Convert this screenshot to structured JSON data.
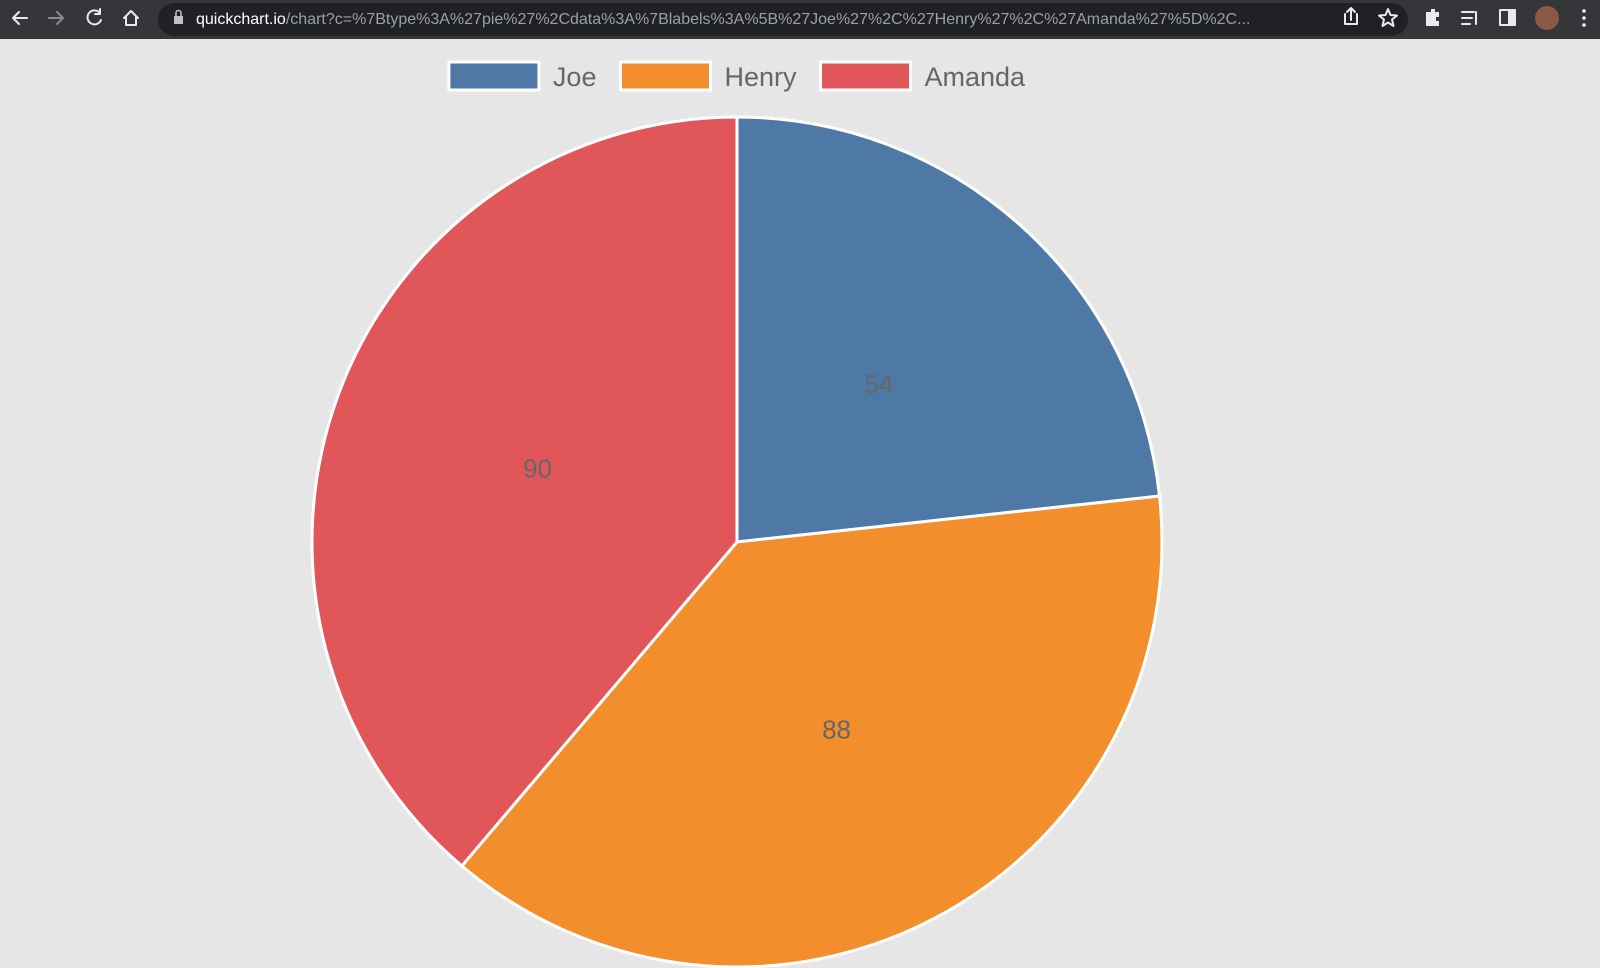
{
  "browser": {
    "url_host": "quickchart.io",
    "url_path": "/chart?c=%7Btype%3A%27pie%27%2Cdata%3A%7Blabels%3A%5B%27Joe%27%2C%27Henry%27%2C%27Amanda%27%5D%2C..."
  },
  "chart_data": {
    "type": "pie",
    "categories": [
      "Joe",
      "Henry",
      "Amanda"
    ],
    "values": [
      54,
      88,
      90
    ],
    "colors": [
      "#4e79a7",
      "#f28e2b",
      "#e15759"
    ],
    "legend": "top"
  }
}
